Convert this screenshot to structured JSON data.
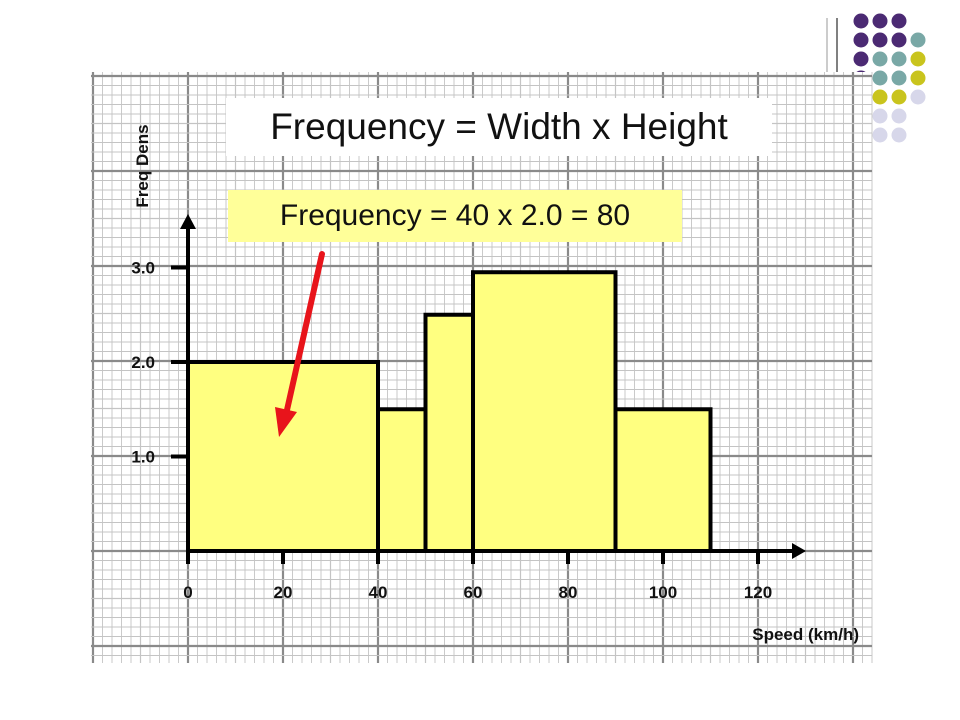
{
  "slide": {
    "title": "Frequency = Width x Height",
    "formula": "Frequency = 40 x 2.0 = 80"
  },
  "colors": {
    "bar_fill": "#ffff80",
    "bar_stroke": "#000000",
    "arrow": "#e8141b",
    "grid_major": "#8a8a8a",
    "grid_minor": "#c4c4c4",
    "dot_purple": "#4b2a73",
    "dot_teal": "#79a8a6",
    "dot_olive": "#c9c41d",
    "dot_lavender": "#d7d7ea"
  },
  "chart_data": {
    "type": "histogram",
    "xlabel": "Speed (km/h)",
    "ylabel": "Freq Dens",
    "x_ticks": [
      0,
      20,
      40,
      60,
      80,
      100,
      120
    ],
    "y_ticks": [
      {
        "value": 1.0,
        "label": "1.0"
      },
      {
        "value": 2.0,
        "label": "2.0"
      },
      {
        "value": 3.0,
        "label": "3.0"
      }
    ],
    "xlim": [
      0,
      130
    ],
    "ylim": [
      0,
      3.5
    ],
    "bins": [
      {
        "from": 0,
        "to": 40,
        "value": 2.0
      },
      {
        "from": 40,
        "to": 50,
        "value": 1.5
      },
      {
        "from": 50,
        "to": 60,
        "value": 2.5
      },
      {
        "from": 60,
        "to": 90,
        "value": 2.95
      },
      {
        "from": 90,
        "to": 110,
        "value": 1.5
      }
    ],
    "annotation": {
      "text": "Frequency = 40 x 2.0 = 80",
      "points_to_bin": 0
    },
    "grid": true
  }
}
